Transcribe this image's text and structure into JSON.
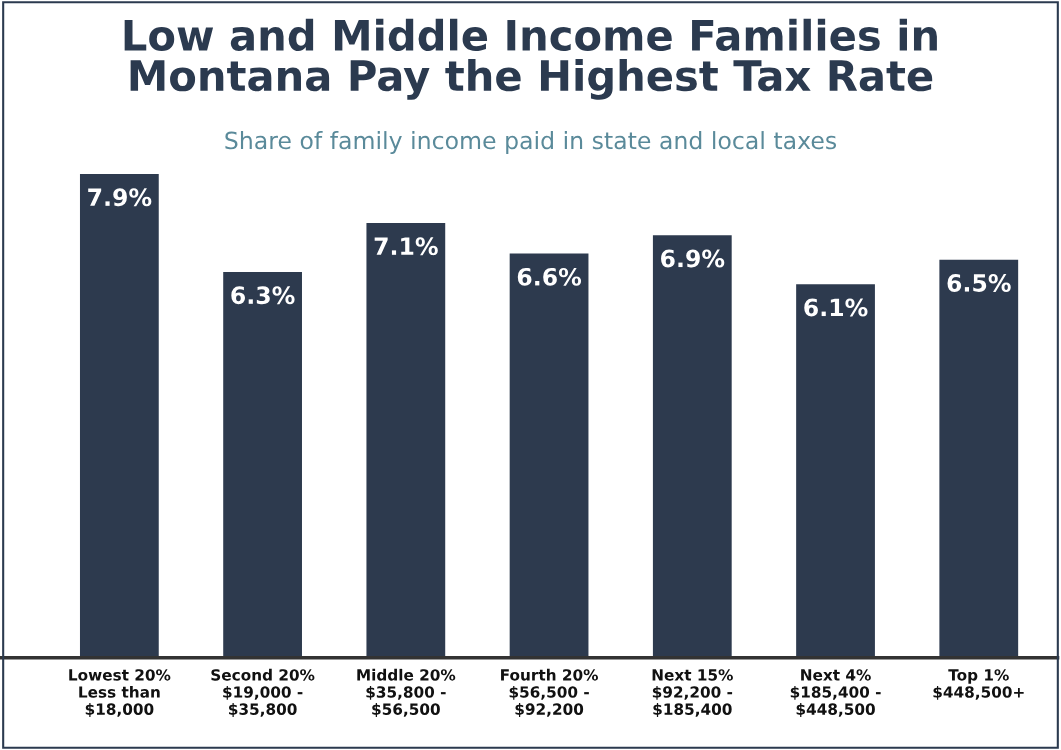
{
  "chart_data": {
    "type": "bar",
    "title": "Low and Middle Income Families in\nMontana Pay the Highest Tax Rate",
    "subtitle": "Share of family income paid in state and local taxes",
    "categories": [
      "Lowest 20%\nLess than\n$18,000",
      "Second 20%\n$19,000 -\n$35,800",
      "Middle 20%\n$35,800 -\n$56,500",
      "Fourth 20%\n$56,500 -\n$92,200",
      "Next 15%\n$92,200 -\n$185,400",
      "Next 4%\n$185,400 -\n$448,500",
      "Top 1%\n$448,500+"
    ],
    "values": [
      7.9,
      6.3,
      7.1,
      6.6,
      6.9,
      6.1,
      6.5
    ],
    "value_labels": [
      "7.9%",
      "6.3%",
      "7.1%",
      "6.6%",
      "6.9%",
      "6.1%",
      "6.5%"
    ],
    "color": "#2d3a4e",
    "grid": false,
    "legend": false
  }
}
